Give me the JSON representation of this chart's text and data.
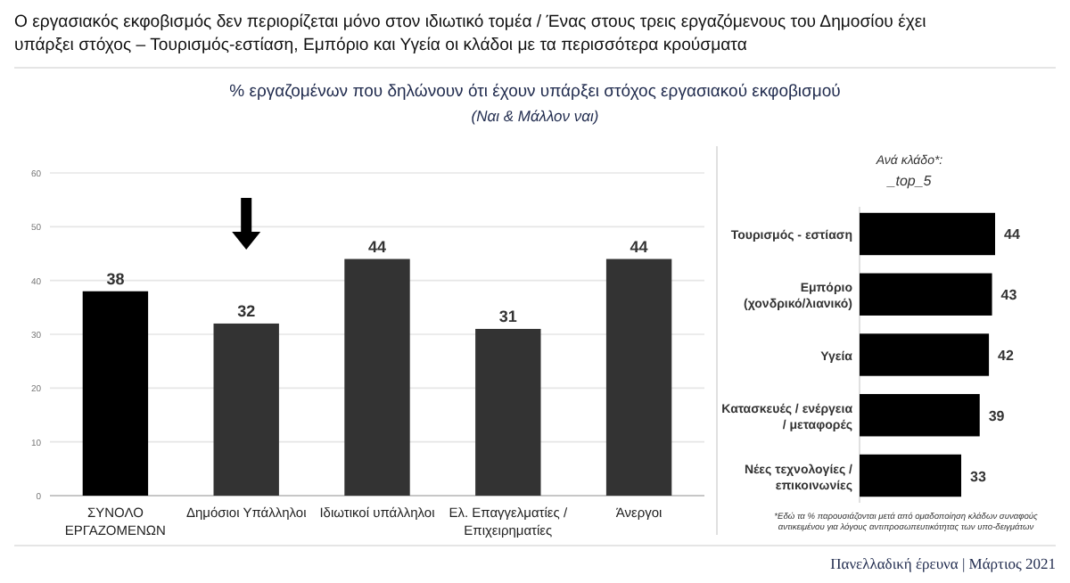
{
  "chart_data": [
    {
      "type": "bar",
      "title": "Ο εργασιακός εκφοβισμός δεν περιορίζεται μόνο στον ιδιωτικό τομέα / Ένας στους τρεις εργαζόμενους του Δημοσίου έχει υπάρξει στόχος – Τουρισμός-εστίαση, Εμπόριο και Υγεία οι κλάδοι με τα περισσότερα κρούσματα",
      "subtitle": "% εργαζομένων που δηλώνουν ότι έχουν υπάρξει στόχος εργασιακού εκφοβισμού",
      "categories": [
        "ΣΥΝΟΛΟ ΕΡΓΑΖΟΜΕΝΩΝ",
        "Δημόσιοι Υπάλληλοι",
        "Ιδιωτικοί υπάλληλοι",
        "Ελ. Επαγγελματίες / Επιχειρηματίες",
        "Άνεργοι"
      ],
      "values": [
        38,
        32,
        44,
        31,
        44
      ],
      "colors": [
        "#000000",
        "#333333",
        "#333333",
        "#333333",
        "#333333"
      ],
      "ylim": [
        0,
        60
      ],
      "yticks": [
        0,
        10,
        20,
        30,
        40,
        50,
        60
      ],
      "grid": "y",
      "data_labels": true,
      "annotations": [
        "(Ναι & Μάλλον ναι)",
        "Πανελλαδική έρευνα | Μάρτιος 2021"
      ]
    },
    {
      "type": "bar",
      "orientation": "horizontal",
      "title": "Ανά κλάδο*:",
      "subtitle": "_top_5",
      "categories": [
        "Τουρισμός - εστίαση",
        "Εμπόριο (χονδρικό/λιανικό)",
        "Υγεία",
        "Κατασκευές / ενέργεια / μεταφορές",
        "Νέες τεχνολογίες / επικοινωνίες"
      ],
      "values": [
        44,
        43,
        42,
        39,
        33
      ],
      "color": "#000000",
      "data_labels": true,
      "annotations": [
        "*Εδώ τα % παρουσιάζονται μετά από ομαδοποίηση κλάδων συναφούς αντικειμένου για λόγους αντιπροσωπευτικότητας των υπο-δειγμάτων"
      ]
    }
  ]
}
